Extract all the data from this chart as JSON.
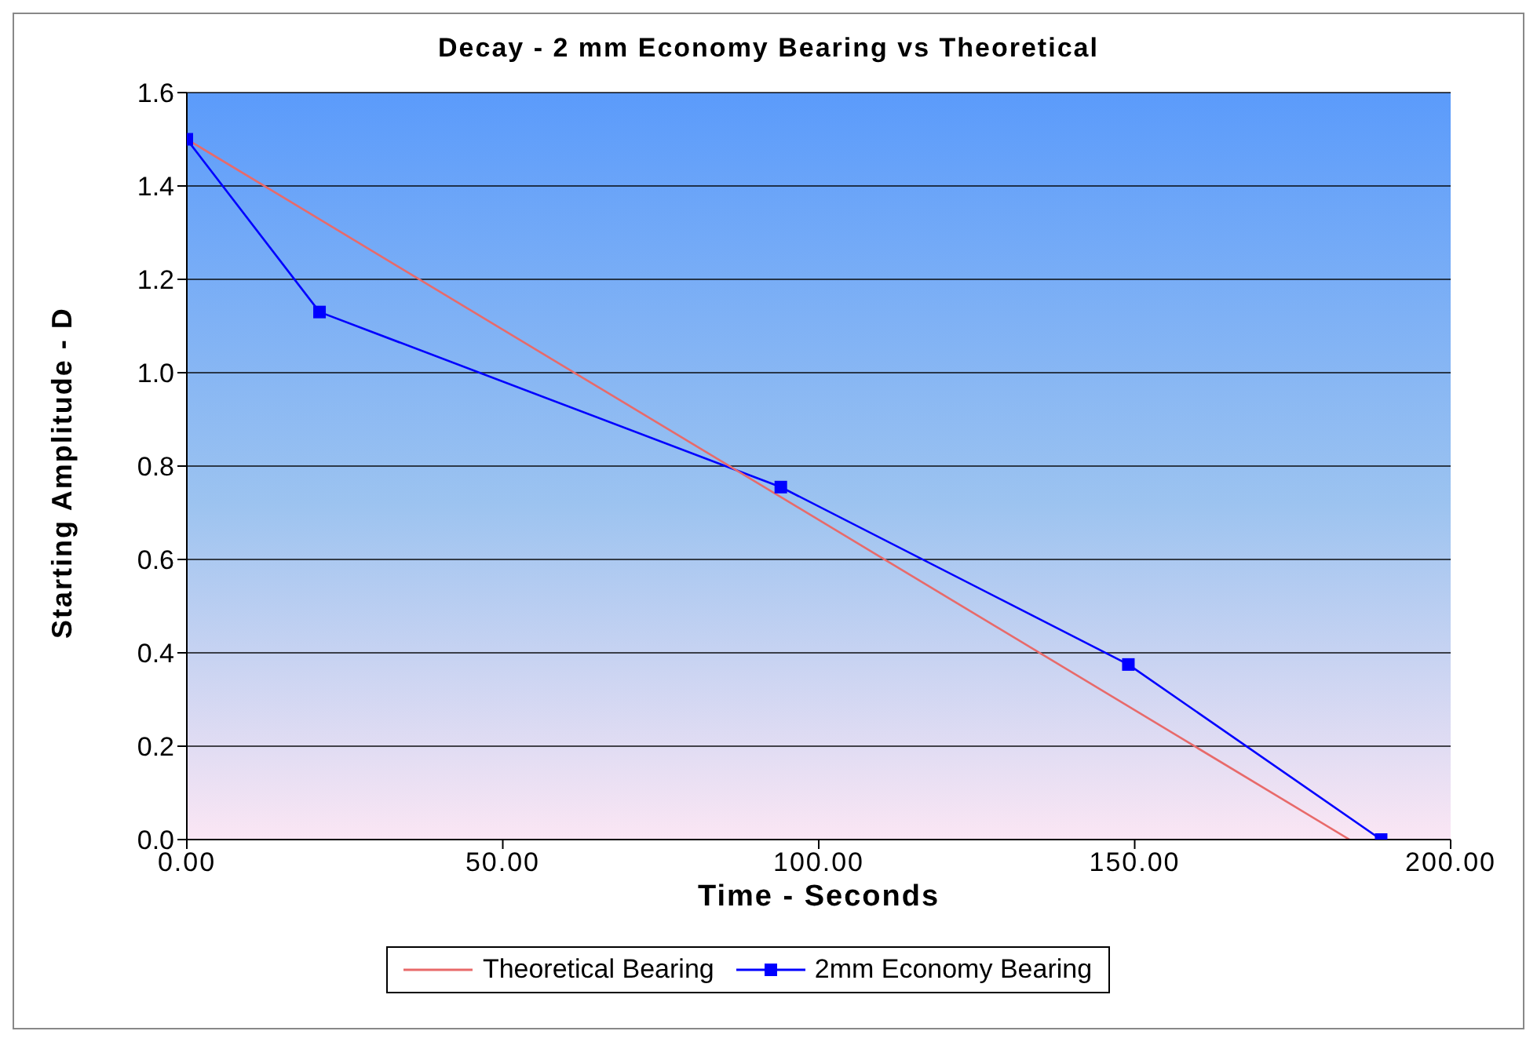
{
  "chart_data": {
    "type": "line",
    "title": "Decay - 2 mm Economy Bearing vs Theoretical",
    "xlabel": "Time - Seconds",
    "ylabel": "Starting Amplitude - D",
    "series": [
      {
        "name": "Theoretical Bearing",
        "color": "#e86a6a",
        "x": [
          0,
          184
        ],
        "values": [
          1.5,
          0
        ],
        "marker": "none"
      },
      {
        "name": "2mm Economy Bearing",
        "color": "#0000ff",
        "x": [
          0,
          21,
          94,
          149,
          189
        ],
        "values": [
          1.5,
          1.13,
          0.755,
          0.375,
          0
        ],
        "marker": "square"
      }
    ],
    "xlim": [
      0,
      200
    ],
    "xticks": [
      {
        "value": 0,
        "label": "0.00"
      },
      {
        "value": 50,
        "label": "50.00"
      },
      {
        "value": 100,
        "label": "100.00"
      },
      {
        "value": 150,
        "label": "150.00"
      },
      {
        "value": 200,
        "label": "200.00"
      }
    ],
    "ylim": [
      0,
      1.6
    ],
    "yticks": [
      {
        "value": 0,
        "label": "0.0"
      },
      {
        "value": 0.2,
        "label": "0.2"
      },
      {
        "value": 0.4,
        "label": "0.4"
      },
      {
        "value": 0.6,
        "label": "0.6"
      },
      {
        "value": 0.8,
        "label": "0.8"
      },
      {
        "value": 1,
        "label": "1.0"
      },
      {
        "value": 1.2,
        "label": "1.2"
      },
      {
        "value": 1.4,
        "label": "1.4"
      },
      {
        "value": 1.6,
        "label": "1.6"
      }
    ],
    "grid": "y",
    "legend": "bottom",
    "line_style": "solid"
  }
}
